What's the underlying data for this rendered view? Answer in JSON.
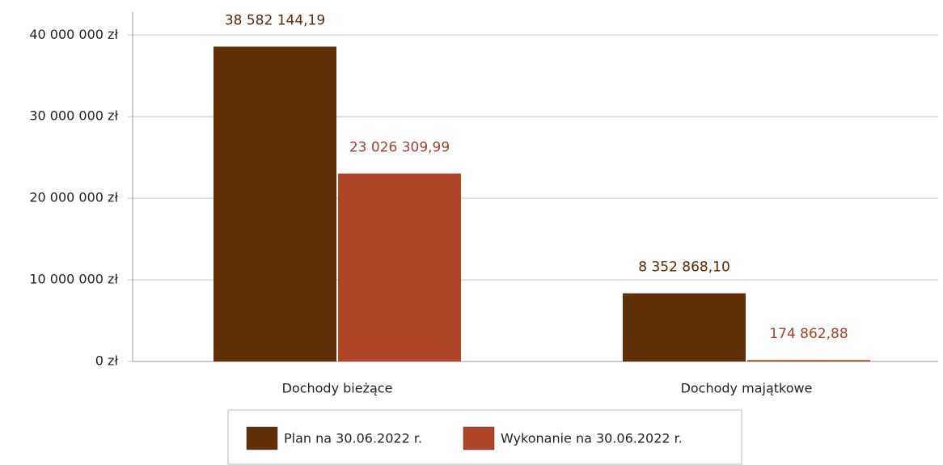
{
  "chart_data": {
    "type": "bar",
    "categories": [
      "Dochody bieżące",
      "Dochody majątkowe"
    ],
    "series": [
      {
        "name": "Plan na 30.06.2022 r.",
        "color": "#612f06",
        "values": [
          38582144.19,
          8352868.1
        ],
        "value_labels": [
          "38 582 144,19",
          "8 352 868,10"
        ]
      },
      {
        "name": "Wykonanie na 30.06.2022 r.",
        "color": "#b04427",
        "values": [
          23026309.99,
          174862.88
        ],
        "value_labels": [
          "23 026 309,99",
          "174 862,88"
        ]
      }
    ],
    "ylim": [
      0,
      42800000
    ],
    "yticks": [
      {
        "value": 0,
        "label": "0 zł"
      },
      {
        "value": 10000000,
        "label": "10 000 000 zł"
      },
      {
        "value": 20000000,
        "label": "20 000 000 zł"
      },
      {
        "value": 30000000,
        "label": "30 000 000 zł"
      },
      {
        "value": 40000000,
        "label": "40 000 000 zł"
      }
    ],
    "grid": true,
    "legend": "bottom"
  }
}
